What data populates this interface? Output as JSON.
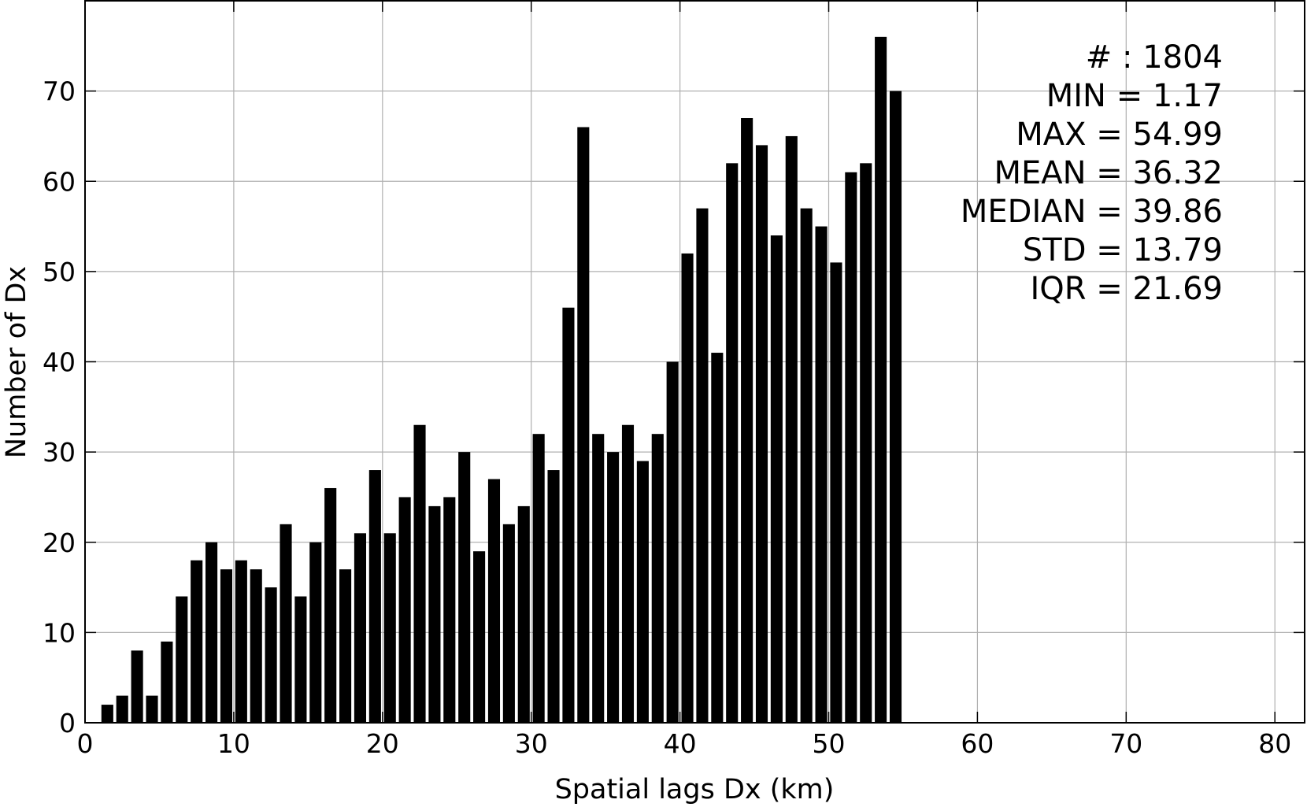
{
  "chart_data": {
    "type": "bar",
    "xlabel": "Spatial lags Dx (km)",
    "ylabel": "Number of Dx",
    "xlim": [
      0,
      82
    ],
    "ylim": [
      0,
      80
    ],
    "xticks": [
      0,
      10,
      20,
      30,
      40,
      50,
      60,
      70,
      80
    ],
    "yticks": [
      0,
      10,
      20,
      30,
      40,
      50,
      60,
      70
    ],
    "grid": true,
    "bar_width": 0.8,
    "x": [
      1.5,
      2.5,
      3.5,
      4.5,
      5.5,
      6.5,
      7.5,
      8.5,
      9.5,
      10.5,
      11.5,
      12.5,
      13.5,
      14.5,
      15.5,
      16.5,
      17.5,
      18.5,
      19.5,
      20.5,
      21.5,
      22.5,
      23.5,
      24.5,
      25.5,
      26.5,
      27.5,
      28.5,
      29.5,
      30.5,
      31.5,
      32.5,
      33.5,
      34.5,
      35.5,
      36.5,
      37.5,
      38.5,
      39.5,
      40.5,
      41.5,
      42.5,
      43.5,
      44.5,
      45.5,
      46.5,
      47.5,
      48.5,
      49.5,
      50.5,
      51.5,
      52.5,
      53.5,
      54.5
    ],
    "values": [
      2,
      3,
      8,
      3,
      9,
      14,
      18,
      20,
      17,
      18,
      17,
      15,
      22,
      14,
      20,
      26,
      17,
      21,
      28,
      21,
      25,
      33,
      24,
      25,
      30,
      19,
      27,
      22,
      24,
      32,
      28,
      46,
      66,
      32,
      30,
      33,
      29,
      32,
      40,
      52,
      57,
      41,
      62,
      67,
      64,
      54,
      65,
      57,
      55,
      51,
      61,
      62,
      76,
      70
    ],
    "stats": [
      "# : 1804",
      "MIN = 1.17",
      "MAX =  54.99",
      "MEAN = 36.32",
      "MEDIAN = 39.86",
      "STD = 13.79",
      "IQR = 21.69"
    ]
  }
}
